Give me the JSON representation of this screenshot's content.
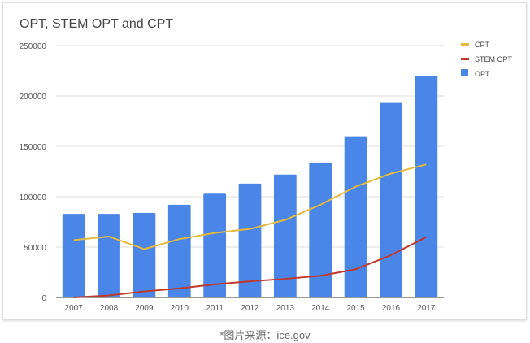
{
  "caption": "*图片来源：ice.gov",
  "chart_data": {
    "type": "bar",
    "title": "OPT, STEM OPT and CPT",
    "xlabel": "",
    "ylabel": "",
    "ylim": [
      0,
      250000
    ],
    "yticks": [
      0,
      50000,
      100000,
      150000,
      200000,
      250000
    ],
    "grid": true,
    "legend_position": "right",
    "categories": [
      "2007",
      "2008",
      "2009",
      "2010",
      "2011",
      "2012",
      "2013",
      "2014",
      "2015",
      "2016",
      "2017"
    ],
    "series": [
      {
        "name": "OPT",
        "type": "bar",
        "color": "#4a86e8",
        "values": [
          83000,
          83000,
          84000,
          92000,
          103000,
          113000,
          122000,
          134000,
          160000,
          193000,
          220000
        ]
      },
      {
        "name": "STEM OPT",
        "type": "line",
        "color": "#c0392b",
        "values": [
          0,
          2000,
          6000,
          9000,
          13000,
          16000,
          18500,
          21500,
          28000,
          42000,
          60000
        ]
      },
      {
        "name": "CPT",
        "type": "line",
        "color": "#e5b93c",
        "values": [
          57000,
          60500,
          48000,
          58000,
          64000,
          68000,
          77000,
          92000,
          110000,
          123000,
          132000
        ]
      }
    ],
    "legend": [
      "CPT",
      "STEM OPT",
      "OPT"
    ]
  }
}
